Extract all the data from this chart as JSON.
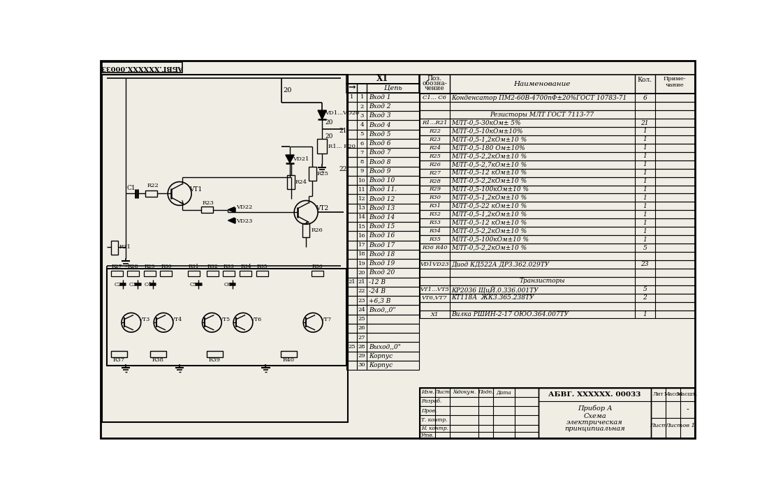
{
  "bg": "#ffffff",
  "fg": "#000000",
  "schematic_bg": "#f0ede5",
  "connector_rows": [
    [
      "1",
      "1",
      "Вход 1"
    ],
    [
      "",
      "2",
      "Вход 2"
    ],
    [
      "",
      "3",
      "Вход 3"
    ],
    [
      "",
      "4",
      "Вход 4"
    ],
    [
      "",
      "5",
      "Вход 5"
    ],
    [
      "",
      "6",
      "Вход 6"
    ],
    [
      "",
      "7",
      "Вход 7"
    ],
    [
      "",
      "8",
      "Вход 8"
    ],
    [
      "",
      "9",
      "Вход 9"
    ],
    [
      "",
      "10",
      "Вход 10"
    ],
    [
      "",
      "11",
      "Вход 11."
    ],
    [
      "",
      "12",
      "Вход 12"
    ],
    [
      "",
      "13",
      "Вход 13"
    ],
    [
      "",
      "14",
      "Вход 14"
    ],
    [
      "",
      "15",
      "Вход 15"
    ],
    [
      "",
      "16",
      "Вход 16"
    ],
    [
      "",
      "17",
      "Вход 17"
    ],
    [
      "",
      "18",
      "Вход 18"
    ],
    [
      "",
      "19",
      "Вход 19"
    ],
    [
      "",
      "20",
      "Вход 20"
    ],
    [
      "21",
      "21",
      "-12 В"
    ],
    [
      "",
      "22",
      "-24 В"
    ],
    [
      "",
      "23",
      "+6,3 В"
    ],
    [
      "",
      "24",
      "Вход,,0\""
    ],
    [
      "",
      "25",
      ""
    ],
    [
      "",
      "26",
      ""
    ],
    [
      "",
      "27",
      ""
    ],
    [
      "25",
      "28",
      "Выход,,0\""
    ],
    [
      "",
      "29",
      "Корпус"
    ],
    [
      "",
      "30",
      "Корпус"
    ]
  ],
  "bom_rows": [
    {
      "pos": "C1... C6",
      "name": "Конденсатор ПМ2-60В-4700пФ±20%ГОСТ 10783-71",
      "qty": "6",
      "center": false
    },
    {
      "pos": "",
      "name": "",
      "qty": "",
      "center": false
    },
    {
      "pos": "",
      "name": "Резисторы МЛТ ГОСТ 7113-77",
      "qty": "",
      "center": true
    },
    {
      "pos": "R1...R21",
      "name": "МЛТ-0,5-30кОм± 5%",
      "qty": "21",
      "center": false
    },
    {
      "pos": "R22",
      "name": "МЛТ-0,5-10кОм±10%",
      "qty": "1",
      "center": false
    },
    {
      "pos": "R23",
      "name": "МЛТ-0,5-1,2кОм±10 %",
      "qty": "1",
      "center": false
    },
    {
      "pos": "R24",
      "name": "МЛТ-0,5-180 Ом±10%",
      "qty": "1",
      "center": false
    },
    {
      "pos": "R25",
      "name": "МЛТ-0,5-2,2кОм±10 %",
      "qty": "1",
      "center": false
    },
    {
      "pos": "R26",
      "name": "МЛТ-0,5-2,7кОм±10 %",
      "qty": "1",
      "center": false
    },
    {
      "pos": "R27",
      "name": "МЛТ-0,5-12 кОм±10 %",
      "qty": "1",
      "center": false
    },
    {
      "pos": "R28",
      "name": "МЛТ-0,5-2,2кОм±10 %",
      "qty": "1",
      "center": false
    },
    {
      "pos": "R29",
      "name": "МЛТ-0,5-100кОм±10 %",
      "qty": "1",
      "center": false
    },
    {
      "pos": "R30",
      "name": "МЛТ-0,5-1,2кОм±10 %",
      "qty": "1",
      "center": false
    },
    {
      "pos": "R31",
      "name": "МЛТ-0,5-22 кОм±10 %",
      "qty": "1",
      "center": false
    },
    {
      "pos": "R32",
      "name": "МЛТ-0,5-1,2кОм±10 %",
      "qty": "1",
      "center": false
    },
    {
      "pos": "R33",
      "name": "МЛТ-0,5-12 кОм±10 %",
      "qty": "1",
      "center": false
    },
    {
      "pos": "R34",
      "name": "МЛТ-0,5-2,2кОм±10 %",
      "qty": "1",
      "center": false
    },
    {
      "pos": "R35",
      "name": "МЛТ-0,5-100кОм±10 %",
      "qty": "1",
      "center": false
    },
    {
      "pos": "R36 R40",
      "name": "МЛТ-0,5-2,2кОм±10 %",
      "qty": "5",
      "center": false
    },
    {
      "pos": "",
      "name": "",
      "qty": "",
      "center": false
    },
    {
      "pos": "VD1VD23",
      "name": "Диод КД522А ДРЗ.362.029ТУ",
      "qty": "23",
      "center": false
    },
    {
      "pos": "",
      "name": "",
      "qty": "",
      "center": false
    },
    {
      "pos": "",
      "name": "Транзисторы",
      "qty": "",
      "center": true
    },
    {
      "pos": "VT1...VT5",
      "name": "КР2036 ЩцЙ.0.336.001ТУ",
      "qty": "5",
      "center": false
    },
    {
      "pos": "VT6,VT7",
      "name": "КТ118А  ЖК3.365.238ТУ",
      "qty": "2",
      "center": false
    },
    {
      "pos": "",
      "name": "",
      "qty": "",
      "center": false
    },
    {
      "pos": "X1",
      "name": "Вилка РШИН-2-17 ОЮО.364.007ТУ",
      "qty": "1",
      "center": false
    }
  ],
  "title_top": "АБВГ.ХХХХХХ.00033",
  "title_doc": "АБВГ. XXXXXX. 00033",
  "name_line1": "Прибор А",
  "name_line2": "Схема",
  "name_line3": "электрическая",
  "name_line4": "принципиальная"
}
